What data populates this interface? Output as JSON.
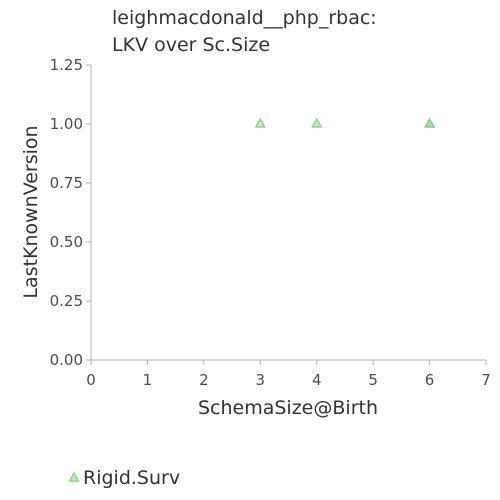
{
  "chart_data": {
    "type": "scatter",
    "title_lines": [
      "leighmacdonald__php_rbac:",
      "LKV over Sc.Size"
    ],
    "xlabel": "SchemaSize@Birth",
    "ylabel": "LastKnownVersion",
    "xlim": [
      0,
      7
    ],
    "ylim": [
      0,
      1.25
    ],
    "x_ticks": [
      "0",
      "1",
      "2",
      "3",
      "4",
      "5",
      "6",
      "7"
    ],
    "y_ticks": [
      "0.00",
      "0.25",
      "0.50",
      "0.75",
      "1.00",
      "1.25"
    ],
    "grid": false,
    "legend_position": "bottom-left",
    "series": [
      {
        "name": "Rigid.Surv",
        "marker": "triangle",
        "color": "#7fcf7f",
        "points": [
          {
            "x": 3,
            "y": 1.0
          },
          {
            "x": 4,
            "y": 1.0
          },
          {
            "x": 6,
            "y": 1.0
          },
          {
            "x": 6,
            "y": 1.0
          }
        ]
      }
    ]
  }
}
